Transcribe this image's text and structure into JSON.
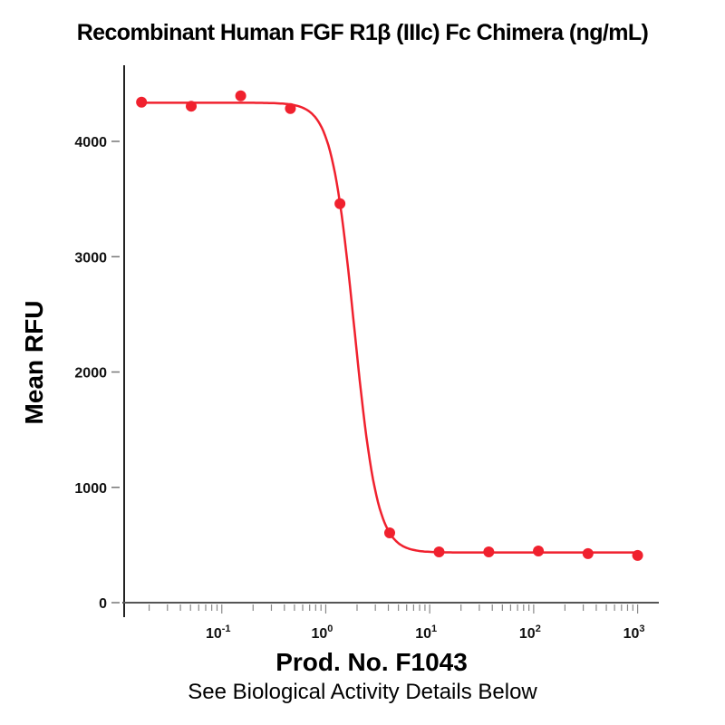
{
  "chart_data": {
    "type": "scatter",
    "title": "Recombinant Human FGF R1β (IIIc) Fc Chimera (ng/mL)",
    "xlabel": "Prod. No. F1043",
    "ylabel": "Mean RFU",
    "note": "See Biological Activity Details Below",
    "x_scale": "log",
    "xlim": [
      0.0115,
      1600
    ],
    "ylim": [
      0,
      4700
    ],
    "x_ticks": [
      {
        "value": 0.1,
        "base": "10",
        "exp": "-1"
      },
      {
        "value": 1,
        "base": "10",
        "exp": "0"
      },
      {
        "value": 10,
        "base": "10",
        "exp": "1"
      },
      {
        "value": 100,
        "base": "10",
        "exp": "2"
      },
      {
        "value": 1000,
        "base": "10",
        "exp": "3"
      }
    ],
    "y_ticks": [
      "0",
      "1000",
      "2000",
      "3000",
      "4000"
    ],
    "grid": false,
    "series": [
      {
        "color": "#f0212e",
        "x": [
          0.0169,
          0.0508,
          0.152,
          0.457,
          1.37,
          4.12,
          12.3,
          37.0,
          111,
          333,
          1000
        ],
        "y": [
          4340,
          4305,
          4395,
          4285,
          3460,
          605,
          440,
          440,
          448,
          425,
          410
        ],
        "fit": "four-parameter logistic curve"
      }
    ]
  }
}
